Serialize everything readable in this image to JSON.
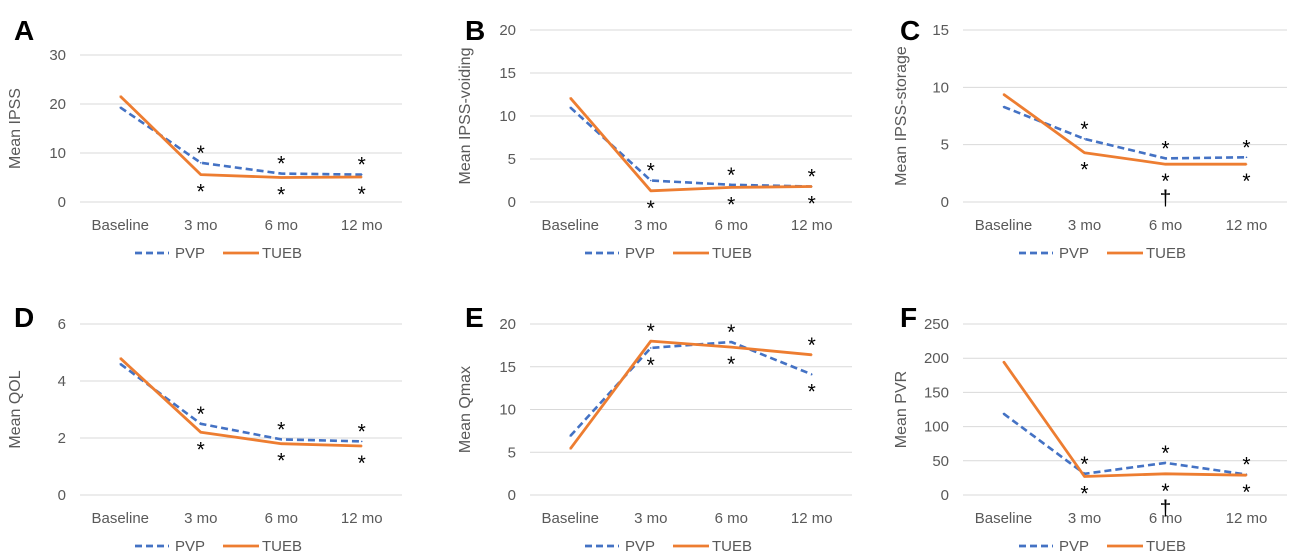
{
  "colors": {
    "pvp": "#4472c4",
    "tueb": "#ed7d31",
    "grid": "#d9d9d9",
    "text": "#595959"
  },
  "legend": {
    "pvp": "PVP",
    "tueb": "TUEB"
  },
  "chart_data": [
    {
      "panel": "A",
      "type": "line",
      "ylabel": "Mean IPSS",
      "ylim": [
        0,
        30
      ],
      "yticks": [
        0,
        10,
        20,
        30
      ],
      "categories": [
        "Baseline",
        "3 mo",
        "6 mo",
        "12 mo"
      ],
      "series": [
        {
          "name": "PVP",
          "values": [
            19.3,
            8.0,
            5.8,
            5.6
          ]
        },
        {
          "name": "TUEB",
          "values": [
            21.6,
            5.6,
            5.0,
            5.1
          ]
        }
      ],
      "annotations": [
        {
          "x": "3 mo",
          "position": "above",
          "text": "*"
        },
        {
          "x": "3 mo",
          "position": "below",
          "text": "*"
        },
        {
          "x": "6 mo",
          "position": "above",
          "text": "*"
        },
        {
          "x": "6 mo",
          "position": "below",
          "text": "*"
        },
        {
          "x": "12 mo",
          "position": "above",
          "text": "*"
        },
        {
          "x": "12 mo",
          "position": "below",
          "text": "*"
        }
      ]
    },
    {
      "panel": "B",
      "type": "line",
      "ylabel": "Mean IPSS-voiding",
      "ylim": [
        0,
        20
      ],
      "yticks": [
        0,
        5,
        10,
        15,
        20
      ],
      "categories": [
        "Baseline",
        "3 mo",
        "6 mo",
        "12 mo"
      ],
      "series": [
        {
          "name": "PVP",
          "values": [
            11.0,
            2.5,
            2.0,
            1.8
          ]
        },
        {
          "name": "TUEB",
          "values": [
            12.1,
            1.3,
            1.7,
            1.8
          ]
        }
      ],
      "annotations": [
        {
          "x": "3 mo",
          "position": "above",
          "text": "*"
        },
        {
          "x": "3 mo",
          "position": "below",
          "text": "*"
        },
        {
          "x": "6 mo",
          "position": "above",
          "text": "*"
        },
        {
          "x": "6 mo",
          "position": "below",
          "text": "*"
        },
        {
          "x": "12 mo",
          "position": "above",
          "text": "*"
        },
        {
          "x": "12 mo",
          "position": "below",
          "text": "*"
        }
      ]
    },
    {
      "panel": "C",
      "type": "line",
      "ylabel": "Mean IPSS-storage",
      "ylim": [
        0,
        15
      ],
      "yticks": [
        0,
        5,
        10,
        15
      ],
      "categories": [
        "Baseline",
        "3 mo",
        "6 mo",
        "12 mo"
      ],
      "series": [
        {
          "name": "PVP",
          "values": [
            8.3,
            5.5,
            3.8,
            3.9
          ]
        },
        {
          "name": "TUEB",
          "values": [
            9.4,
            4.3,
            3.3,
            3.3
          ]
        }
      ],
      "annotations": [
        {
          "x": "3 mo",
          "position": "above",
          "text": "*"
        },
        {
          "x": "3 mo",
          "position": "below",
          "text": "*"
        },
        {
          "x": "6 mo",
          "position": "above",
          "text": "*"
        },
        {
          "x": "6 mo",
          "position": "below",
          "text": "*"
        },
        {
          "x": "6 mo",
          "position": "below2",
          "text": "†"
        },
        {
          "x": "12 mo",
          "position": "above",
          "text": "*"
        },
        {
          "x": "12 mo",
          "position": "below",
          "text": "*"
        }
      ]
    },
    {
      "panel": "D",
      "type": "line",
      "ylabel": "Mean QOL",
      "ylim": [
        0,
        6
      ],
      "yticks": [
        0,
        2,
        4,
        6
      ],
      "categories": [
        "Baseline",
        "3 mo",
        "6 mo",
        "12 mo"
      ],
      "series": [
        {
          "name": "PVP",
          "values": [
            4.6,
            2.5,
            1.95,
            1.88
          ]
        },
        {
          "name": "TUEB",
          "values": [
            4.8,
            2.2,
            1.8,
            1.72
          ]
        }
      ],
      "annotations": [
        {
          "x": "3 mo",
          "position": "above",
          "text": "*"
        },
        {
          "x": "3 mo",
          "position": "below",
          "text": "*"
        },
        {
          "x": "6 mo",
          "position": "above",
          "text": "*"
        },
        {
          "x": "6 mo",
          "position": "below",
          "text": "*"
        },
        {
          "x": "12 mo",
          "position": "above",
          "text": "*"
        },
        {
          "x": "12 mo",
          "position": "below",
          "text": "*"
        }
      ]
    },
    {
      "panel": "E",
      "type": "line",
      "ylabel": "Mean Qmax",
      "ylim": [
        0,
        20
      ],
      "yticks": [
        0,
        5,
        10,
        15,
        20
      ],
      "categories": [
        "Baseline",
        "3 mo",
        "6 mo",
        "12 mo"
      ],
      "series": [
        {
          "name": "PVP",
          "values": [
            6.9,
            17.2,
            17.9,
            14.1
          ]
        },
        {
          "name": "TUEB",
          "values": [
            5.4,
            18.0,
            17.3,
            16.4
          ]
        }
      ],
      "annotations": [
        {
          "x": "3 mo",
          "position": "above",
          "text": "*"
        },
        {
          "x": "3 mo",
          "position": "below",
          "text": "*"
        },
        {
          "x": "6 mo",
          "position": "above",
          "text": "*"
        },
        {
          "x": "6 mo",
          "position": "below",
          "text": "*"
        },
        {
          "x": "12 mo",
          "position": "above",
          "text": "*"
        },
        {
          "x": "12 mo",
          "position": "below",
          "text": "*"
        }
      ]
    },
    {
      "panel": "F",
      "type": "line",
      "ylabel": "Mean PVR",
      "ylim": [
        0,
        250
      ],
      "yticks": [
        0,
        50,
        100,
        150,
        200,
        250
      ],
      "categories": [
        "Baseline",
        "3 mo",
        "6 mo",
        "12 mo"
      ],
      "series": [
        {
          "name": "PVP",
          "values": [
            119,
            31,
            47,
            30
          ]
        },
        {
          "name": "TUEB",
          "values": [
            195,
            27,
            31,
            29
          ]
        }
      ],
      "annotations": [
        {
          "x": "3 mo",
          "position": "above",
          "text": "*"
        },
        {
          "x": "3 mo",
          "position": "below",
          "text": "*"
        },
        {
          "x": "6 mo",
          "position": "above",
          "text": "*"
        },
        {
          "x": "6 mo",
          "position": "below",
          "text": "*"
        },
        {
          "x": "6 mo",
          "position": "below2",
          "text": "†"
        },
        {
          "x": "12 mo",
          "position": "above",
          "text": "*"
        },
        {
          "x": "12 mo",
          "position": "below",
          "text": "*"
        }
      ]
    }
  ]
}
